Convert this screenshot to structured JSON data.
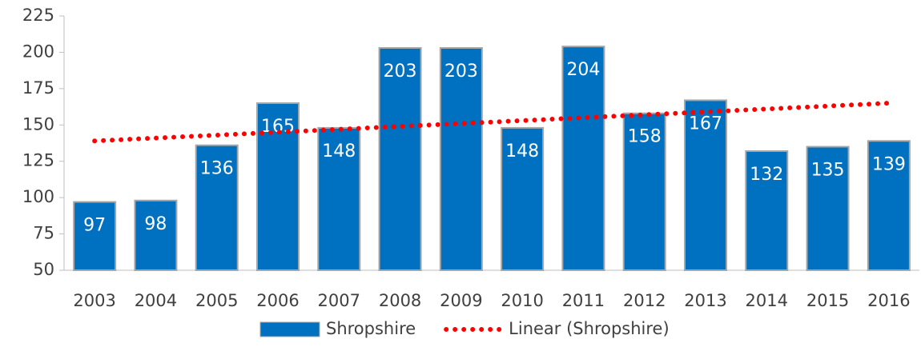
{
  "chart_data": {
    "type": "bar",
    "categories": [
      "2003",
      "2004",
      "2005",
      "2006",
      "2007",
      "2008",
      "2009",
      "2010",
      "2011",
      "2012",
      "2013",
      "2014",
      "2015",
      "2016"
    ],
    "series": [
      {
        "name": "Shropshire",
        "type": "bar",
        "color": "#0070c0",
        "values": [
          97,
          98,
          136,
          165,
          148,
          203,
          203,
          148,
          204,
          158,
          167,
          132,
          135,
          139
        ]
      },
      {
        "name": "Linear (Shropshire)",
        "type": "line",
        "dotted": true,
        "color": "#ff0000",
        "values": [
          139,
          141,
          143,
          145,
          147,
          149,
          151,
          153,
          155,
          157,
          159,
          161,
          163,
          165
        ]
      }
    ],
    "ylim": [
      50,
      225
    ],
    "yticks": [
      50,
      75,
      100,
      125,
      150,
      175,
      200,
      225
    ],
    "grid": false,
    "legend": "bottom"
  }
}
